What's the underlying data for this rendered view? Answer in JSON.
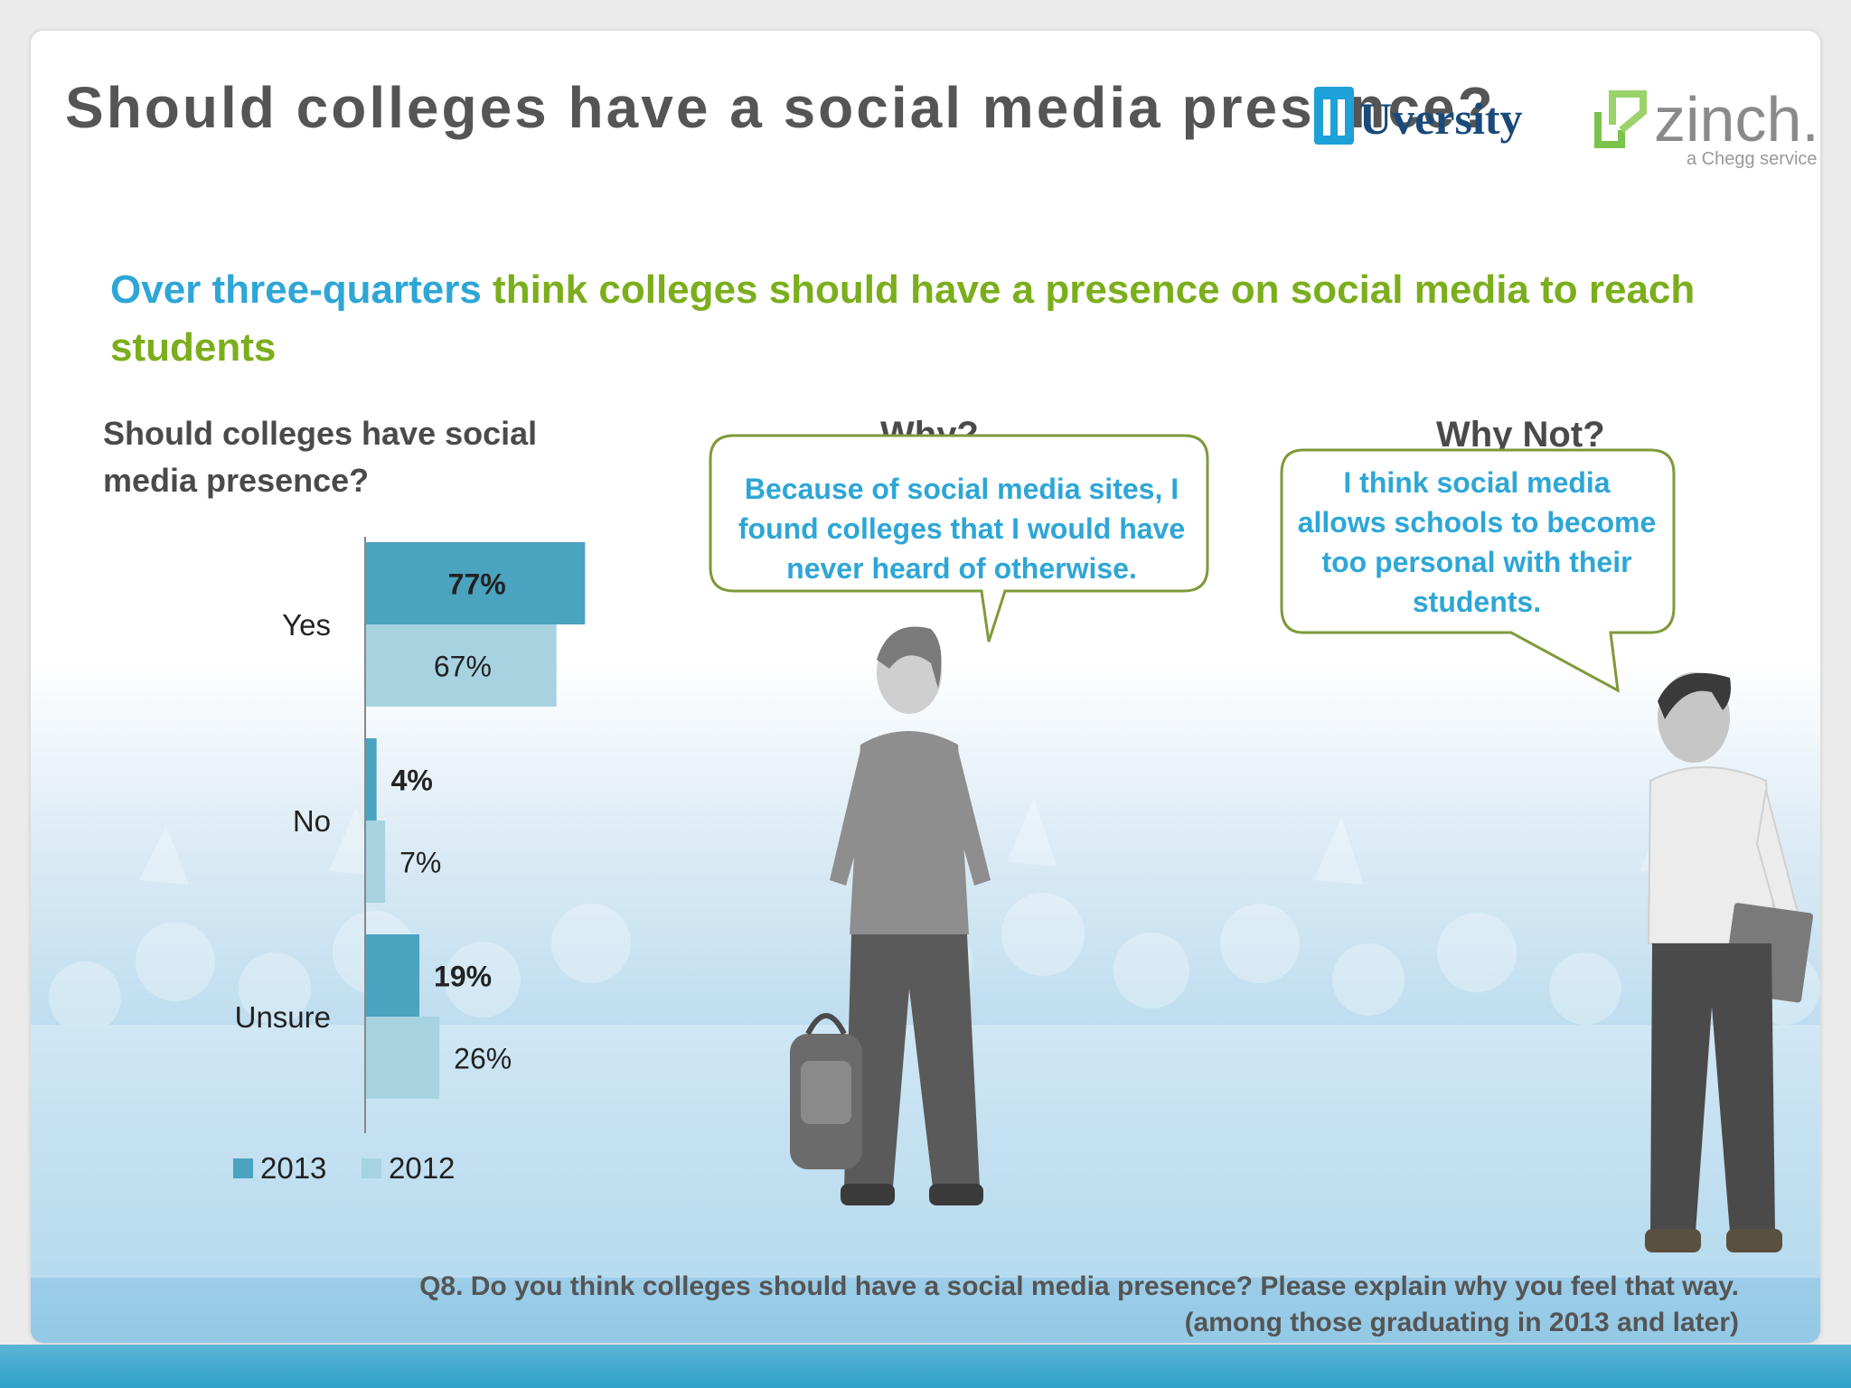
{
  "title": "Should colleges have a social media presence?",
  "logos": {
    "uversity": "Uversity",
    "zinch": "zinch.",
    "zinch_tag": "a Chegg service"
  },
  "headline": {
    "part1": "Over three-quarters",
    "part2": " think colleges should have a presence on social media to reach students"
  },
  "chart_data": {
    "type": "bar",
    "orientation": "horizontal",
    "title": "Should colleges have social media presence?",
    "categories": [
      "Yes",
      "No",
      "Unsure"
    ],
    "series": [
      {
        "name": "2013",
        "values": [
          77,
          4,
          19
        ],
        "labels": [
          "77%",
          "4%",
          "19%"
        ],
        "color": "#4aa3bf"
      },
      {
        "name": "2012",
        "values": [
          67,
          7,
          26
        ],
        "labels": [
          "67%",
          "7%",
          "26%"
        ],
        "color": "#a7d3e1"
      }
    ],
    "xlim": [
      0,
      100
    ],
    "legend": "bottom",
    "grid": false
  },
  "why": {
    "heading": "Why?",
    "quote": "Because of social media sites, I found colleges that I would have never heard of otherwise."
  },
  "why_not": {
    "heading": "Why Not?",
    "quote": "I think social media allows schools to become too personal with their students."
  },
  "question": {
    "line1": "Q8. Do you think colleges should have a social media presence?  Please explain why you feel that way.",
    "line2": "(among those graduating in 2013 and later)"
  },
  "colors": {
    "accent_blue": "#2ea6d6",
    "accent_green": "#7bae1c",
    "bubble_border": "#7e9a3a"
  }
}
